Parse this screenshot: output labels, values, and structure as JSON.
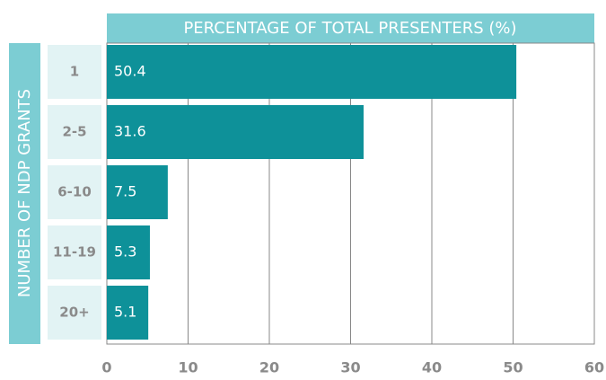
{
  "chart_data": {
    "type": "bar",
    "orientation": "horizontal",
    "title": "PERCENTAGE OF TOTAL PRESENTERS (%)",
    "y_axis_label": "NUMBER OF NDP GRANTS",
    "categories": [
      "1",
      "2-5",
      "6-10",
      "11-19",
      "20+"
    ],
    "values": [
      50.4,
      31.6,
      7.5,
      5.3,
      5.1
    ],
    "color": "#0e9199",
    "xlim": [
      0,
      60
    ],
    "xticks": [
      0,
      10,
      20,
      30,
      40,
      50,
      60
    ],
    "grid": true
  }
}
